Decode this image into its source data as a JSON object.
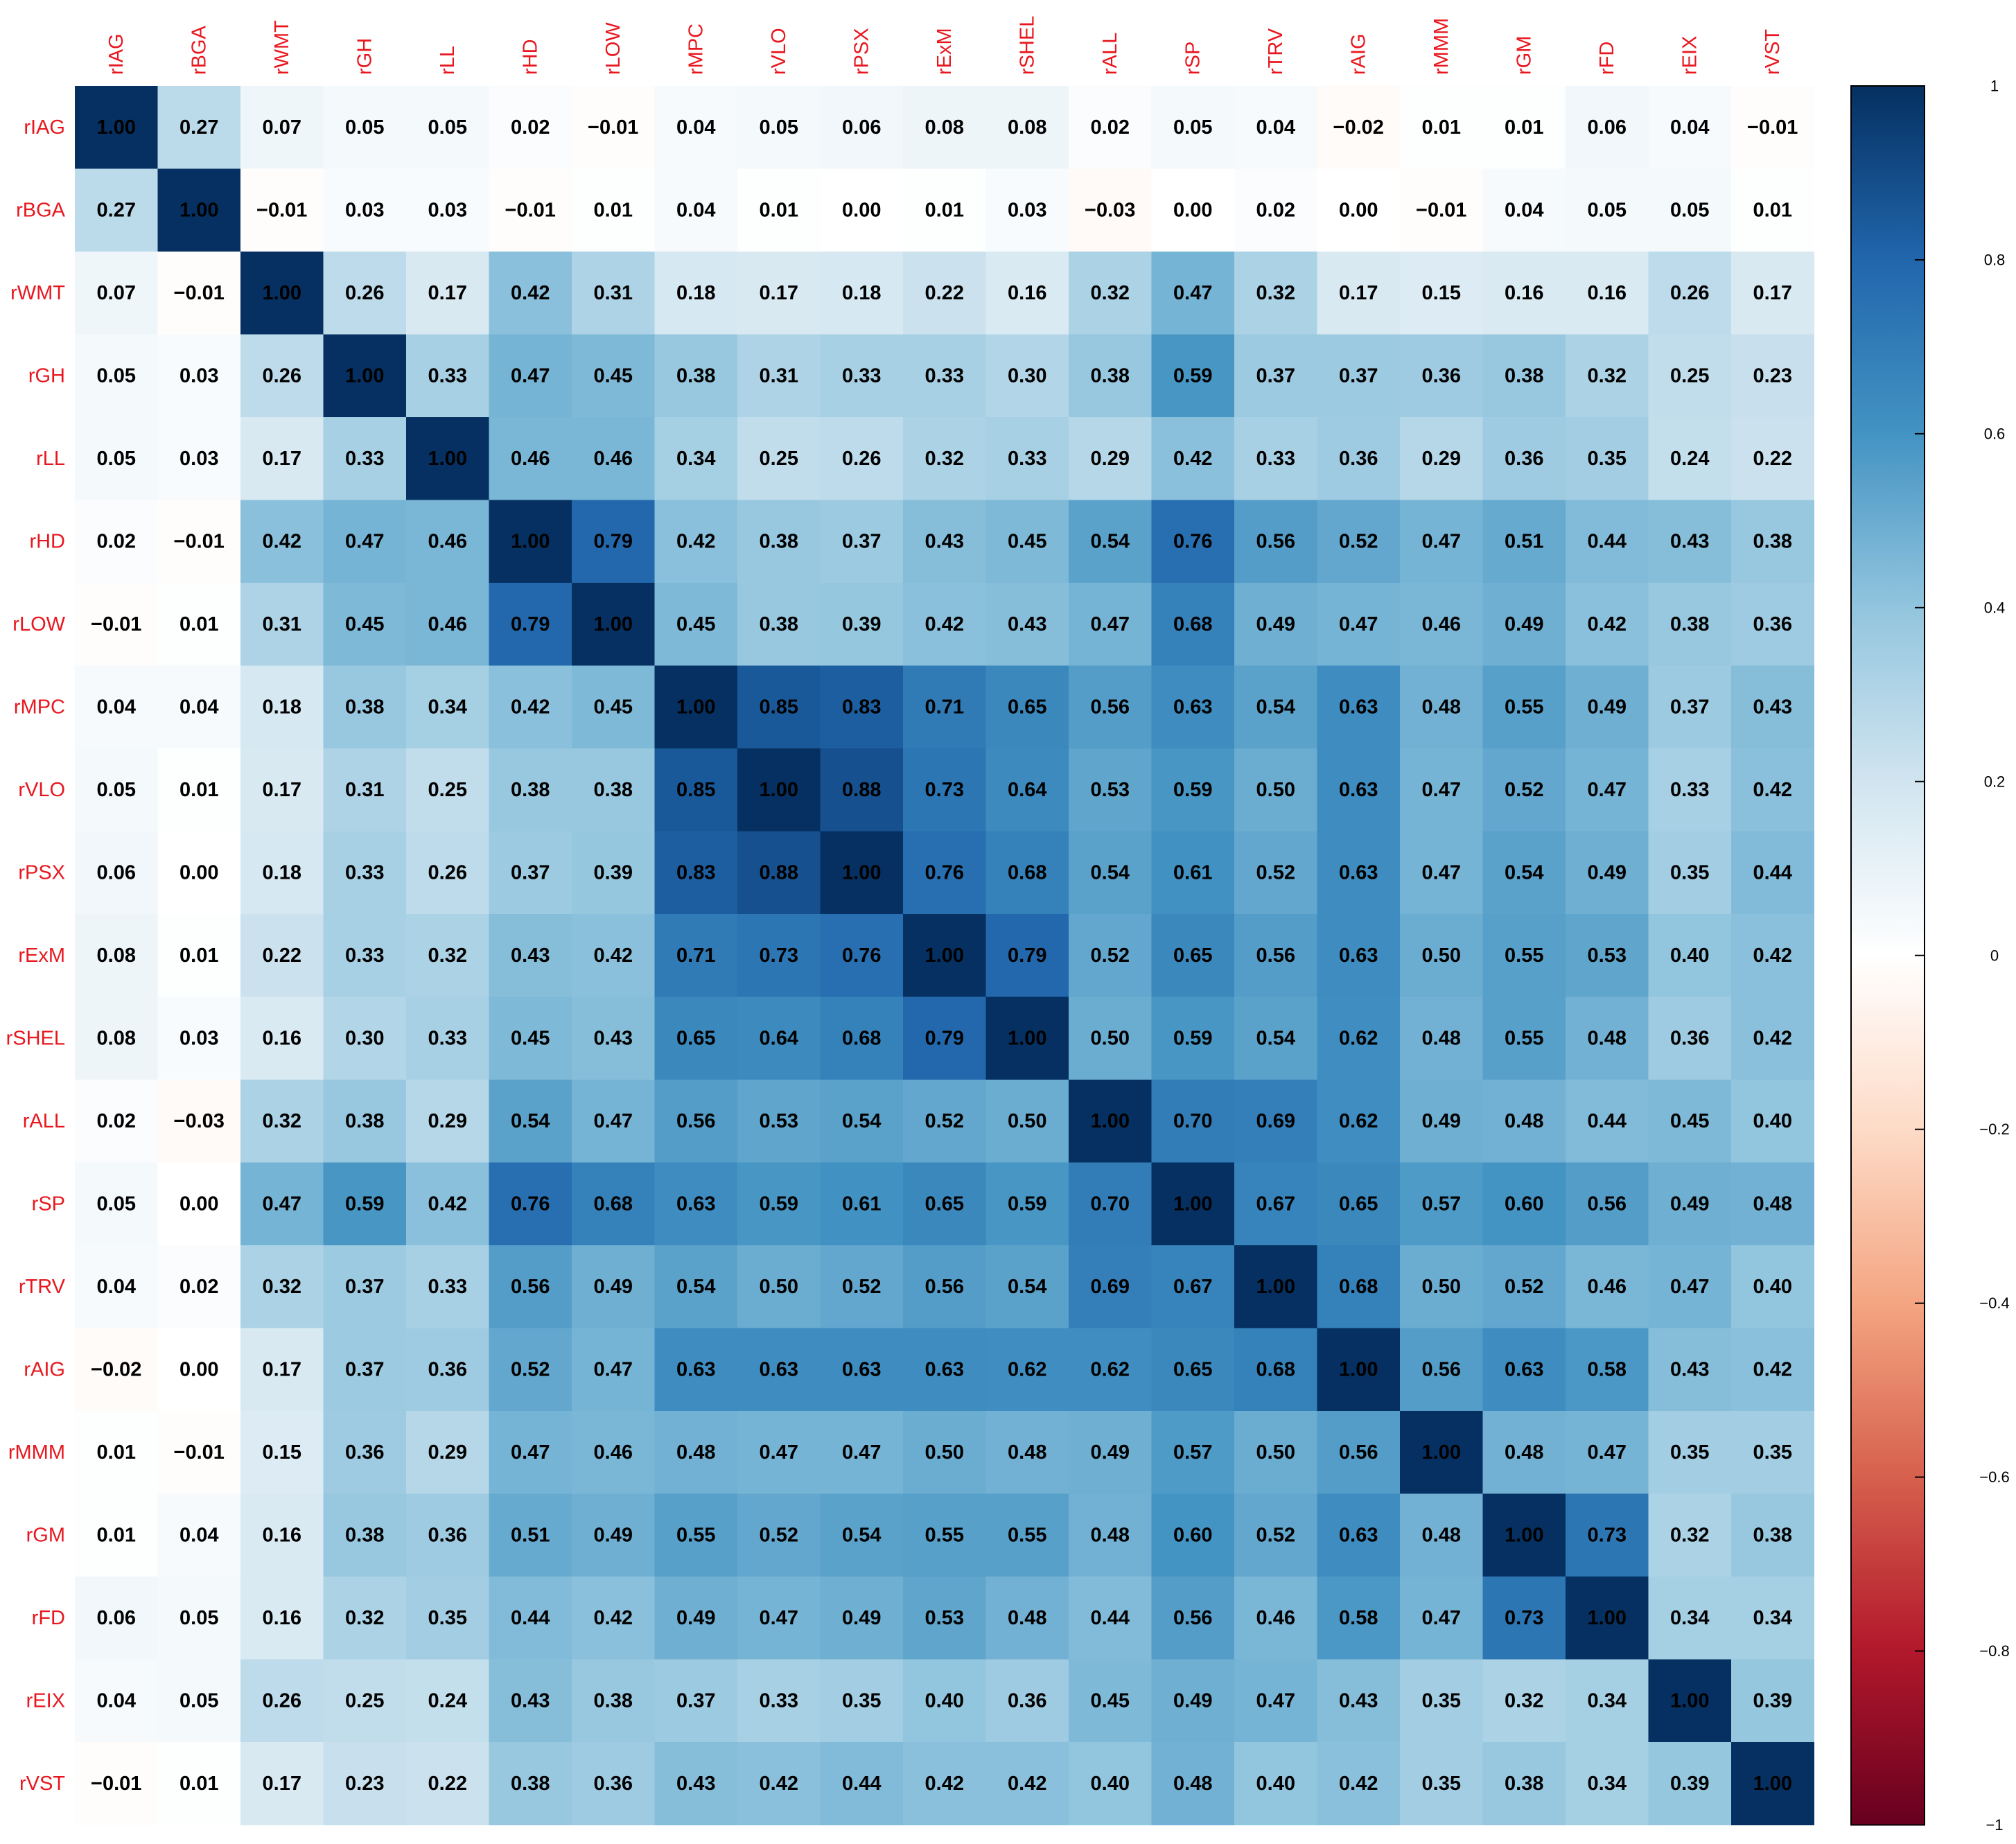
{
  "chart_data": {
    "type": "heatmap",
    "categories": [
      "rIAG",
      "rBGA",
      "rWMT",
      "rGH",
      "rLL",
      "rHD",
      "rLOW",
      "rMPC",
      "rVLO",
      "rPSX",
      "rExM",
      "rSHEL",
      "rALL",
      "rSP",
      "rTRV",
      "rAIG",
      "rMMM",
      "rGM",
      "rFD",
      "rEIX",
      "rVST"
    ],
    "values": [
      [
        1,
        0.27,
        0.07,
        0.05,
        0.05,
        0.02,
        -0.01,
        0.04,
        0.05,
        0.06,
        0.08,
        0.08,
        0.02,
        0.05,
        0.04,
        -0.02,
        0.01,
        0.01,
        0.06,
        0.04,
        -0.01
      ],
      [
        0.27,
        1,
        -0.01,
        0.03,
        0.03,
        -0.01,
        0.01,
        0.04,
        0.01,
        0,
        0.01,
        0.03,
        -0.03,
        0,
        0.02,
        0,
        -0.01,
        0.04,
        0.05,
        0.05,
        0.01
      ],
      [
        0.07,
        -0.01,
        1,
        0.26,
        0.17,
        0.42,
        0.31,
        0.18,
        0.17,
        0.18,
        0.22,
        0.16,
        0.32,
        0.47,
        0.32,
        0.17,
        0.15,
        0.16,
        0.16,
        0.26,
        0.17
      ],
      [
        0.05,
        0.03,
        0.26,
        1,
        0.33,
        0.47,
        0.45,
        0.38,
        0.31,
        0.33,
        0.33,
        0.3,
        0.38,
        0.59,
        0.37,
        0.37,
        0.36,
        0.38,
        0.32,
        0.25,
        0.23
      ],
      [
        0.05,
        0.03,
        0.17,
        0.33,
        1,
        0.46,
        0.46,
        0.34,
        0.25,
        0.26,
        0.32,
        0.33,
        0.29,
        0.42,
        0.33,
        0.36,
        0.29,
        0.36,
        0.35,
        0.24,
        0.22
      ],
      [
        0.02,
        -0.01,
        0.42,
        0.47,
        0.46,
        1,
        0.79,
        0.42,
        0.38,
        0.37,
        0.43,
        0.45,
        0.54,
        0.76,
        0.56,
        0.52,
        0.47,
        0.51,
        0.44,
        0.43,
        0.38
      ],
      [
        -0.01,
        0.01,
        0.31,
        0.45,
        0.46,
        0.79,
        1,
        0.45,
        0.38,
        0.39,
        0.42,
        0.43,
        0.47,
        0.68,
        0.49,
        0.47,
        0.46,
        0.49,
        0.42,
        0.38,
        0.36
      ],
      [
        0.04,
        0.04,
        0.18,
        0.38,
        0.34,
        0.42,
        0.45,
        1,
        0.85,
        0.83,
        0.71,
        0.65,
        0.56,
        0.63,
        0.54,
        0.63,
        0.48,
        0.55,
        0.49,
        0.37,
        0.43
      ],
      [
        0.05,
        0.01,
        0.17,
        0.31,
        0.25,
        0.38,
        0.38,
        0.85,
        1,
        0.88,
        0.73,
        0.64,
        0.53,
        0.59,
        0.5,
        0.63,
        0.47,
        0.52,
        0.47,
        0.33,
        0.42
      ],
      [
        0.06,
        0,
        0.18,
        0.33,
        0.26,
        0.37,
        0.39,
        0.83,
        0.88,
        1,
        0.76,
        0.68,
        0.54,
        0.61,
        0.52,
        0.63,
        0.47,
        0.54,
        0.49,
        0.35,
        0.44
      ],
      [
        0.08,
        0.01,
        0.22,
        0.33,
        0.32,
        0.43,
        0.42,
        0.71,
        0.73,
        0.76,
        1,
        0.79,
        0.52,
        0.65,
        0.56,
        0.63,
        0.5,
        0.55,
        0.53,
        0.4,
        0.42
      ],
      [
        0.08,
        0.03,
        0.16,
        0.3,
        0.33,
        0.45,
        0.43,
        0.65,
        0.64,
        0.68,
        0.79,
        1,
        0.5,
        0.59,
        0.54,
        0.62,
        0.48,
        0.55,
        0.48,
        0.36,
        0.42
      ],
      [
        0.02,
        -0.03,
        0.32,
        0.38,
        0.29,
        0.54,
        0.47,
        0.56,
        0.53,
        0.54,
        0.52,
        0.5,
        1,
        0.7,
        0.69,
        0.62,
        0.49,
        0.48,
        0.44,
        0.45,
        0.4
      ],
      [
        0.05,
        0,
        0.47,
        0.59,
        0.42,
        0.76,
        0.68,
        0.63,
        0.59,
        0.61,
        0.65,
        0.59,
        0.7,
        1,
        0.67,
        0.65,
        0.57,
        0.6,
        0.56,
        0.49,
        0.48
      ],
      [
        0.04,
        0.02,
        0.32,
        0.37,
        0.33,
        0.56,
        0.49,
        0.54,
        0.5,
        0.52,
        0.56,
        0.54,
        0.69,
        0.67,
        1,
        0.68,
        0.5,
        0.52,
        0.46,
        0.47,
        0.4
      ],
      [
        -0.02,
        0,
        0.17,
        0.37,
        0.36,
        0.52,
        0.47,
        0.63,
        0.63,
        0.63,
        0.63,
        0.62,
        0.62,
        0.65,
        0.68,
        1,
        0.56,
        0.63,
        0.58,
        0.43,
        0.42
      ],
      [
        0.01,
        -0.01,
        0.15,
        0.36,
        0.29,
        0.47,
        0.46,
        0.48,
        0.47,
        0.47,
        0.5,
        0.48,
        0.49,
        0.57,
        0.5,
        0.56,
        1,
        0.48,
        0.47,
        0.35,
        0.35
      ],
      [
        0.01,
        0.04,
        0.16,
        0.38,
        0.36,
        0.51,
        0.49,
        0.55,
        0.52,
        0.54,
        0.55,
        0.55,
        0.48,
        0.6,
        0.52,
        0.63,
        0.48,
        1,
        0.73,
        0.32,
        0.38
      ],
      [
        0.06,
        0.05,
        0.16,
        0.32,
        0.35,
        0.44,
        0.42,
        0.49,
        0.47,
        0.49,
        0.53,
        0.48,
        0.44,
        0.56,
        0.46,
        0.58,
        0.47,
        0.73,
        1,
        0.34,
        0.34
      ],
      [
        0.04,
        0.05,
        0.26,
        0.25,
        0.24,
        0.43,
        0.38,
        0.37,
        0.33,
        0.35,
        0.4,
        0.36,
        0.45,
        0.49,
        0.47,
        0.43,
        0.35,
        0.32,
        0.34,
        1,
        0.39
      ],
      [
        -0.01,
        0.01,
        0.17,
        0.23,
        0.22,
        0.38,
        0.36,
        0.43,
        0.42,
        0.44,
        0.42,
        0.42,
        0.4,
        0.48,
        0.4,
        0.42,
        0.35,
        0.38,
        0.34,
        0.39,
        1
      ]
    ],
    "value_labels": [
      [
        "1.00",
        "0.27",
        "0.07",
        "0.05",
        "0.05",
        "0.02",
        "−0.01",
        "0.04",
        "0.05",
        "0.06",
        "0.08",
        "0.08",
        "0.02",
        "0.05",
        "0.04",
        "−0.02",
        "0.01",
        "0.01",
        "0.06",
        "0.04",
        "−0.01"
      ],
      [
        "0.27",
        "1.00",
        "−0.01",
        "0.03",
        "0.03",
        "−0.01",
        "0.01",
        "0.04",
        "0.01",
        "0.00",
        "0.01",
        "0.03",
        "−0.03",
        "0.00",
        "0.02",
        "0.00",
        "−0.01",
        "0.04",
        "0.05",
        "0.05",
        "0.01"
      ],
      [
        "0.07",
        "−0.01",
        "1.00",
        "0.26",
        "0.17",
        "0.42",
        "0.31",
        "0.18",
        "0.17",
        "0.18",
        "0.22",
        "0.16",
        "0.32",
        "0.47",
        "0.32",
        "0.17",
        "0.15",
        "0.16",
        "0.16",
        "0.26",
        "0.17"
      ],
      [
        "0.05",
        "0.03",
        "0.26",
        "1.00",
        "0.33",
        "0.47",
        "0.45",
        "0.38",
        "0.31",
        "0.33",
        "0.33",
        "0.30",
        "0.38",
        "0.59",
        "0.37",
        "0.37",
        "0.36",
        "0.38",
        "0.32",
        "0.25",
        "0.23"
      ],
      [
        "0.05",
        "0.03",
        "0.17",
        "0.33",
        "1.00",
        "0.46",
        "0.46",
        "0.34",
        "0.25",
        "0.26",
        "0.32",
        "0.33",
        "0.29",
        "0.42",
        "0.33",
        "0.36",
        "0.29",
        "0.36",
        "0.35",
        "0.24",
        "0.22"
      ],
      [
        "0.02",
        "−0.01",
        "0.42",
        "0.47",
        "0.46",
        "1.00",
        "0.79",
        "0.42",
        "0.38",
        "0.37",
        "0.43",
        "0.45",
        "0.54",
        "0.76",
        "0.56",
        "0.52",
        "0.47",
        "0.51",
        "0.44",
        "0.43",
        "0.38"
      ],
      [
        "−0.01",
        "0.01",
        "0.31",
        "0.45",
        "0.46",
        "0.79",
        "1.00",
        "0.45",
        "0.38",
        "0.39",
        "0.42",
        "0.43",
        "0.47",
        "0.68",
        "0.49",
        "0.47",
        "0.46",
        "0.49",
        "0.42",
        "0.38",
        "0.36"
      ],
      [
        "0.04",
        "0.04",
        "0.18",
        "0.38",
        "0.34",
        "0.42",
        "0.45",
        "1.00",
        "0.85",
        "0.83",
        "0.71",
        "0.65",
        "0.56",
        "0.63",
        "0.54",
        "0.63",
        "0.48",
        "0.55",
        "0.49",
        "0.37",
        "0.43"
      ],
      [
        "0.05",
        "0.01",
        "0.17",
        "0.31",
        "0.25",
        "0.38",
        "0.38",
        "0.85",
        "1.00",
        "0.88",
        "0.73",
        "0.64",
        "0.53",
        "0.59",
        "0.50",
        "0.63",
        "0.47",
        "0.52",
        "0.47",
        "0.33",
        "0.42"
      ],
      [
        "0.06",
        "0.00",
        "0.18",
        "0.33",
        "0.26",
        "0.37",
        "0.39",
        "0.83",
        "0.88",
        "1.00",
        "0.76",
        "0.68",
        "0.54",
        "0.61",
        "0.52",
        "0.63",
        "0.47",
        "0.54",
        "0.49",
        "0.35",
        "0.44"
      ],
      [
        "0.08",
        "0.01",
        "0.22",
        "0.33",
        "0.32",
        "0.43",
        "0.42",
        "0.71",
        "0.73",
        "0.76",
        "1.00",
        "0.79",
        "0.52",
        "0.65",
        "0.56",
        "0.63",
        "0.50",
        "0.55",
        "0.53",
        "0.40",
        "0.42"
      ],
      [
        "0.08",
        "0.03",
        "0.16",
        "0.30",
        "0.33",
        "0.45",
        "0.43",
        "0.65",
        "0.64",
        "0.68",
        "0.79",
        "1.00",
        "0.50",
        "0.59",
        "0.54",
        "0.62",
        "0.48",
        "0.55",
        "0.48",
        "0.36",
        "0.42"
      ],
      [
        "0.02",
        "−0.03",
        "0.32",
        "0.38",
        "0.29",
        "0.54",
        "0.47",
        "0.56",
        "0.53",
        "0.54",
        "0.52",
        "0.50",
        "1.00",
        "0.70",
        "0.69",
        "0.62",
        "0.49",
        "0.48",
        "0.44",
        "0.45",
        "0.40"
      ],
      [
        "0.05",
        "0.00",
        "0.47",
        "0.59",
        "0.42",
        "0.76",
        "0.68",
        "0.63",
        "0.59",
        "0.61",
        "0.65",
        "0.59",
        "0.70",
        "1.00",
        "0.67",
        "0.65",
        "0.57",
        "0.60",
        "0.56",
        "0.49",
        "0.48"
      ],
      [
        "0.04",
        "0.02",
        "0.32",
        "0.37",
        "0.33",
        "0.56",
        "0.49",
        "0.54",
        "0.50",
        "0.52",
        "0.56",
        "0.54",
        "0.69",
        "0.67",
        "1.00",
        "0.68",
        "0.50",
        "0.52",
        "0.46",
        "0.47",
        "0.40"
      ],
      [
        "−0.02",
        "0.00",
        "0.17",
        "0.37",
        "0.36",
        "0.52",
        "0.47",
        "0.63",
        "0.63",
        "0.63",
        "0.63",
        "0.62",
        "0.62",
        "0.65",
        "0.68",
        "1.00",
        "0.56",
        "0.63",
        "0.58",
        "0.43",
        "0.42"
      ],
      [
        "0.01",
        "−0.01",
        "0.15",
        "0.36",
        "0.29",
        "0.47",
        "0.46",
        "0.48",
        "0.47",
        "0.47",
        "0.50",
        "0.48",
        "0.49",
        "0.57",
        "0.50",
        "0.56",
        "1.00",
        "0.48",
        "0.47",
        "0.35",
        "0.35"
      ],
      [
        "0.01",
        "0.04",
        "0.16",
        "0.38",
        "0.36",
        "0.51",
        "0.49",
        "0.55",
        "0.52",
        "0.54",
        "0.55",
        "0.55",
        "0.48",
        "0.60",
        "0.52",
        "0.63",
        "0.48",
        "1.00",
        "0.73",
        "0.32",
        "0.38"
      ],
      [
        "0.06",
        "0.05",
        "0.16",
        "0.32",
        "0.35",
        "0.44",
        "0.42",
        "0.49",
        "0.47",
        "0.49",
        "0.53",
        "0.48",
        "0.44",
        "0.56",
        "0.46",
        "0.58",
        "0.47",
        "0.73",
        "1.00",
        "0.34",
        "0.34"
      ],
      [
        "0.04",
        "0.05",
        "0.26",
        "0.25",
        "0.24",
        "0.43",
        "0.38",
        "0.37",
        "0.33",
        "0.35",
        "0.40",
        "0.36",
        "0.45",
        "0.49",
        "0.47",
        "0.43",
        "0.35",
        "0.32",
        "0.34",
        "1.00",
        "0.39"
      ],
      [
        "−0.01",
        "0.01",
        "0.17",
        "0.23",
        "0.22",
        "0.38",
        "0.36",
        "0.43",
        "0.42",
        "0.44",
        "0.42",
        "0.42",
        "0.40",
        "0.48",
        "0.40",
        "0.42",
        "0.35",
        "0.38",
        "0.34",
        "0.39",
        "1.00"
      ]
    ],
    "zlim": [
      -1,
      1
    ],
    "colorscale": [
      "#67001F",
      "#B2182B",
      "#D6604D",
      "#F4A582",
      "#FDDBC7",
      "#FFFFFF",
      "#D1E5F0",
      "#92C5DE",
      "#4393C3",
      "#2166AC",
      "#053061"
    ],
    "label_color": "#E8171F",
    "zticks": [
      {
        "value": -1,
        "label": "−1"
      },
      {
        "value": -0.8,
        "label": "−0.8"
      },
      {
        "value": -0.6,
        "label": "−0.6"
      },
      {
        "value": -0.4,
        "label": "−0.4"
      },
      {
        "value": -0.2,
        "label": "−0.2"
      },
      0,
      0.2,
      0.4,
      0.6,
      0.8,
      1
    ]
  }
}
